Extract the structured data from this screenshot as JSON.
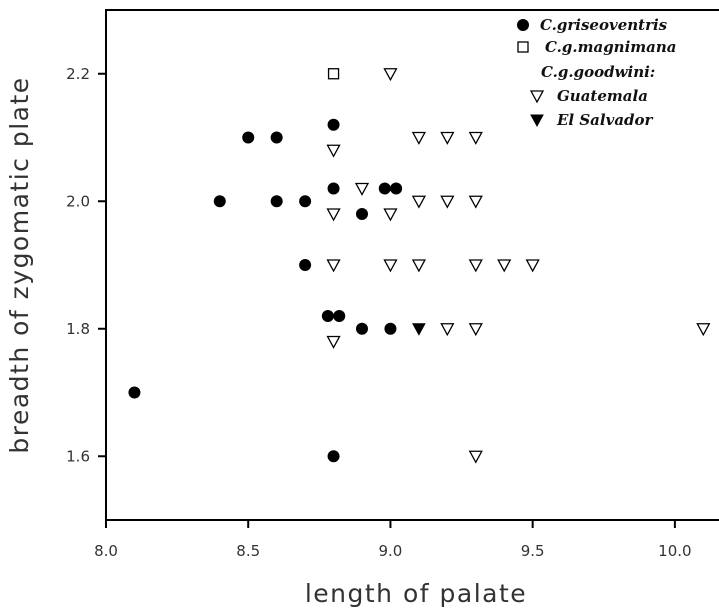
{
  "chart_data": {
    "type": "scatter",
    "xlabel": "length of palate",
    "ylabel": "breadth of zygomatic plate",
    "xlim": [
      8.0,
      10.25
    ],
    "ylim": [
      1.5,
      2.3
    ],
    "xticks": [
      "8.0",
      "8.5",
      "9.0",
      "9.5",
      "10.0"
    ],
    "yticks": [
      "1.6",
      "1.8",
      "2.0",
      "2.2"
    ],
    "grid": false,
    "legend_position": "top-right",
    "legend": [
      {
        "label": "C.griseoventris",
        "marker": "filled-circle"
      },
      {
        "label": "C.g.magnimana",
        "marker": "open-square"
      },
      {
        "label": "C.g.goodwini:",
        "marker": "none"
      },
      {
        "label": "Guatemala",
        "marker": "open-triangle-down"
      },
      {
        "label": "El Salvador",
        "marker": "filled-triangle-down"
      }
    ],
    "series": [
      {
        "name": "C.griseoventris",
        "marker": "filled-circle",
        "points": [
          [
            8.1,
            1.7
          ],
          [
            8.4,
            2.0
          ],
          [
            8.5,
            2.1
          ],
          [
            8.6,
            2.1
          ],
          [
            8.6,
            2.0
          ],
          [
            8.7,
            2.0
          ],
          [
            8.7,
            1.9
          ],
          [
            8.8,
            2.12
          ],
          [
            8.8,
            2.02
          ],
          [
            8.9,
            1.98
          ],
          [
            8.98,
            2.02
          ],
          [
            9.02,
            2.02
          ],
          [
            8.78,
            1.82
          ],
          [
            8.82,
            1.82
          ],
          [
            8.9,
            1.8
          ],
          [
            9.0,
            1.8
          ],
          [
            8.8,
            1.6
          ]
        ]
      },
      {
        "name": "C.g.magnimana",
        "marker": "open-square",
        "points": [
          [
            8.8,
            2.2
          ]
        ]
      },
      {
        "name": "Guatemala",
        "marker": "open-triangle-down",
        "points": [
          [
            9.0,
            2.2
          ],
          [
            8.8,
            2.08
          ],
          [
            9.1,
            2.1
          ],
          [
            9.2,
            2.1
          ],
          [
            9.3,
            2.1
          ],
          [
            8.9,
            2.02
          ],
          [
            8.8,
            1.98
          ],
          [
            9.0,
            1.98
          ],
          [
            9.1,
            2.0
          ],
          [
            9.2,
            2.0
          ],
          [
            9.3,
            2.0
          ],
          [
            8.8,
            1.9
          ],
          [
            9.0,
            1.9
          ],
          [
            9.1,
            1.9
          ],
          [
            9.3,
            1.9
          ],
          [
            9.4,
            1.9
          ],
          [
            9.5,
            1.9
          ],
          [
            8.8,
            1.78
          ],
          [
            9.2,
            1.8
          ],
          [
            9.3,
            1.8
          ],
          [
            10.1,
            1.8
          ],
          [
            9.3,
            1.6
          ]
        ]
      },
      {
        "name": "El Salvador",
        "marker": "filled-triangle-down",
        "points": [
          [
            9.1,
            1.8
          ]
        ]
      }
    ]
  }
}
